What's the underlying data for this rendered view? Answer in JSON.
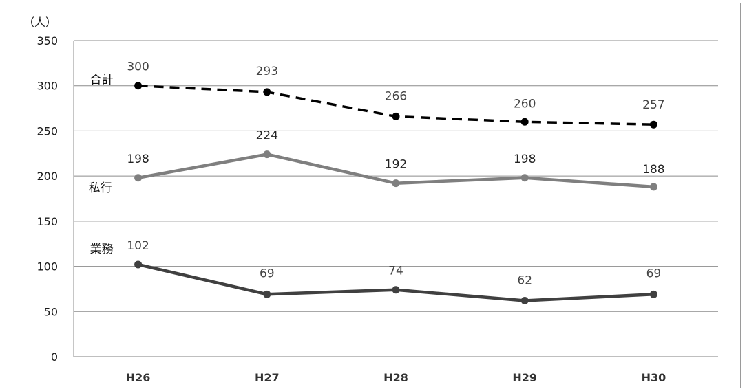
{
  "chart_data": {
    "type": "line",
    "unit_label": "（人）",
    "categories": [
      "H26",
      "H27",
      "H28",
      "H29",
      "H30"
    ],
    "ylim": [
      0,
      350
    ],
    "yticks": [
      0,
      50,
      100,
      150,
      200,
      250,
      300,
      350
    ],
    "grid": true,
    "legend": "none",
    "series": [
      {
        "name": "合計",
        "values": [
          300,
          293,
          266,
          260,
          257
        ],
        "color": "#000000",
        "style": "dashed",
        "label_color": "#444444"
      },
      {
        "name": "私行",
        "values": [
          198,
          224,
          192,
          198,
          188
        ],
        "color": "#7f7f7f",
        "style": "solid",
        "label_color": "#222222"
      },
      {
        "name": "業務",
        "values": [
          102,
          69,
          74,
          62,
          69
        ],
        "color": "#404040",
        "style": "solid",
        "label_color": "#444444"
      }
    ]
  }
}
